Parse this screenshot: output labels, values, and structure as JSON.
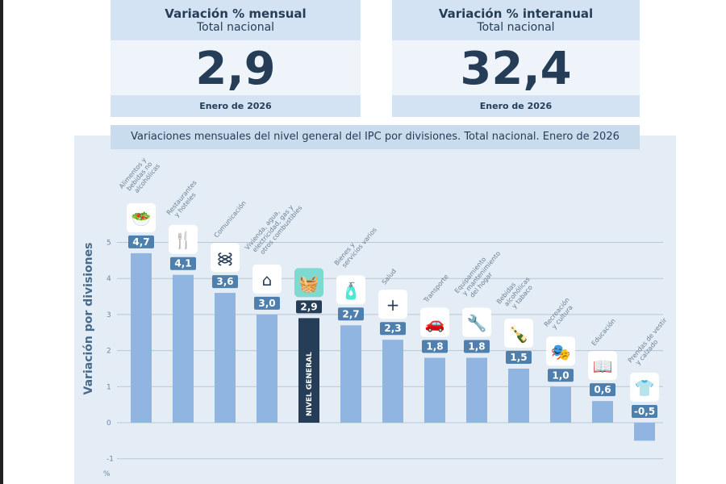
{
  "cards": [
    {
      "title": "Variación % mensual",
      "subtitle": "Total nacional",
      "value": "2,9",
      "date": "Enero de 2026"
    },
    {
      "title": "Variación % interanual",
      "subtitle": "Total nacional",
      "value": "32,4",
      "date": "Enero de 2026"
    }
  ],
  "chart_data": {
    "type": "bar",
    "title": "Variaciones mensuales del nivel general del IPC por divisiones. Total nacional. Enero de 2026",
    "ylabel": "Variación por divisiones",
    "yunit": "%",
    "ylim": [
      -1,
      5
    ],
    "yticks": [
      5,
      4,
      3,
      2,
      1,
      0,
      -1
    ],
    "grid": true,
    "categories": [
      [
        "Alimentos y",
        "bebidas no",
        "alcohólicas"
      ],
      [
        "Restaurantes",
        "y hoteles"
      ],
      [
        "Comunicación"
      ],
      [
        "Vivienda, agua,",
        "electricidad, gas y",
        "otros combustibles"
      ],
      [
        "NIVEL GENERAL"
      ],
      [
        "Bienes y",
        "servicios varios"
      ],
      [
        "Salud"
      ],
      [
        "Transporte"
      ],
      [
        "Equipamiento",
        "y mantenimiento",
        "del hogar"
      ],
      [
        "Bebidas",
        "alcohólicas",
        "y tabaco"
      ],
      [
        "Recreación",
        "y cultura"
      ],
      [
        "Educación"
      ],
      [
        "Prendas de vestir",
        "y calzado"
      ]
    ],
    "values": [
      4.7,
      4.1,
      3.6,
      3.0,
      2.9,
      2.7,
      2.3,
      1.8,
      1.8,
      1.5,
      1.0,
      0.6,
      -0.5
    ],
    "labels": [
      "4,7",
      "4,1",
      "3,6",
      "3,0",
      "2,9",
      "2,7",
      "2,3",
      "1,8",
      "1,8",
      "1,5",
      "1,0",
      "0,6",
      "-0,5"
    ],
    "icons": [
      "food-icon",
      "restaurant-icon",
      "wifi-icon",
      "house-energy-icon",
      "basket-icon",
      "personal-care-icon",
      "health-cross-icon",
      "car-icon",
      "tools-icon",
      "bottle-cigarette-icon",
      "theater-masks-icon",
      "book-icon",
      "tshirt-icon"
    ],
    "highlight_index": 4,
    "colors": {
      "bar": "#8fb5e0",
      "highlight": "#253d57",
      "label_box": "#4f7fad",
      "highlight_icon_bg": "#7ed9d0"
    }
  }
}
